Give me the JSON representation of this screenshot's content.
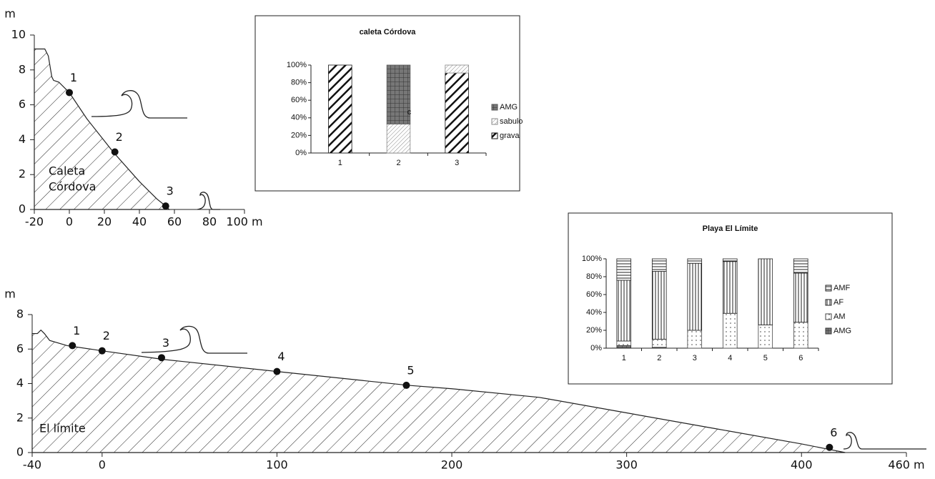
{
  "chart_data": [
    {
      "type": "profile",
      "y_label": "m",
      "area_label": [
        "Caleta",
        "Córdova"
      ],
      "x": [
        -20,
        -14,
        -12,
        -10,
        -9,
        -6,
        0,
        10,
        25,
        40,
        50,
        55,
        57
      ],
      "values": [
        9.2,
        9.2,
        8.8,
        7.6,
        7.4,
        7.3,
        6.7,
        5.2,
        3.3,
        1.6,
        0.6,
        0.2,
        0
      ],
      "stations": {
        "labels": [
          "1",
          "2",
          "3"
        ],
        "x": [
          0,
          26,
          55
        ],
        "values": [
          6.7,
          3.3,
          0.2
        ]
      },
      "xlim": [
        -20,
        100
      ],
      "xticks": [
        -20,
        0,
        20,
        40,
        60,
        80,
        {
          "value": 100,
          "label": "100 m"
        }
      ],
      "ylim": [
        0,
        10
      ],
      "yticks": [
        0,
        2,
        4,
        6,
        8,
        10
      ]
    },
    {
      "type": "stacked_bar",
      "title": "caleta Córdova",
      "categories": [
        "1",
        "2",
        "3"
      ],
      "annotation": "c",
      "series": [
        {
          "name": "AMG",
          "color": "#555555",
          "pattern": "crosshatch",
          "values": [
            0,
            67,
            0
          ]
        },
        {
          "name": "sabulo",
          "color": "#888888",
          "pattern": "diagonal-thin",
          "values": [
            0,
            33,
            9
          ]
        },
        {
          "name": "grava",
          "color": "#111111",
          "pattern": "diagonal-thick",
          "values": [
            100,
            0,
            91
          ]
        }
      ],
      "ylim": [
        0,
        100
      ],
      "yticks": [
        {
          "value": 0,
          "label": "0%"
        },
        {
          "value": 20,
          "label": "20%"
        },
        {
          "value": 40,
          "label": "40%"
        },
        {
          "value": 60,
          "label": "60%"
        },
        {
          "value": 80,
          "label": "80%"
        },
        {
          "value": 100,
          "label": "100%"
        }
      ]
    },
    {
      "type": "profile",
      "y_label": "m",
      "area_label": [
        "El límite"
      ],
      "x": [
        -40,
        -37,
        -35,
        -33,
        -30,
        -20,
        0,
        35,
        100,
        175,
        200,
        250,
        300,
        350,
        400,
        415,
        425
      ],
      "values": [
        6.9,
        6.9,
        7.1,
        6.9,
        6.5,
        6.2,
        5.9,
        5.4,
        4.7,
        3.9,
        3.7,
        3.2,
        2.3,
        1.4,
        0.5,
        0.2,
        0
      ],
      "stations": {
        "labels": [
          "1",
          "2",
          "3",
          "4",
          "5",
          "6"
        ],
        "x": [
          -17,
          0,
          34,
          100,
          174,
          416
        ],
        "values": [
          6.2,
          5.9,
          5.5,
          4.7,
          3.9,
          0.3
        ]
      },
      "xlim": [
        -40,
        460
      ],
      "xticks": [
        -40,
        0,
        100,
        200,
        300,
        400,
        {
          "value": 460,
          "label": "460 m"
        }
      ],
      "ylim": [
        0,
        8
      ],
      "yticks": [
        0,
        2,
        4,
        6,
        8
      ]
    },
    {
      "type": "stacked_bar",
      "title": "Playa El Límite",
      "categories": [
        "1",
        "2",
        "3",
        "4",
        "5",
        "6"
      ],
      "series": [
        {
          "name": "AMF",
          "color": "#222222",
          "pattern": "horizontal",
          "values": [
            24,
            14,
            5,
            3,
            0,
            16
          ]
        },
        {
          "name": "AF",
          "color": "#222222",
          "pattern": "vertical",
          "values": [
            68,
            76,
            75,
            58,
            74,
            55
          ]
        },
        {
          "name": "AM",
          "color": "#444444",
          "pattern": "dots",
          "values": [
            5,
            9,
            20,
            39,
            26,
            29
          ]
        },
        {
          "name": "AMG",
          "color": "#333333",
          "pattern": "crosshatch",
          "values": [
            3,
            1,
            0,
            0,
            0,
            0
          ]
        }
      ],
      "ylim": [
        0,
        100
      ],
      "yticks": [
        {
          "value": 0,
          "label": "0%"
        },
        {
          "value": 20,
          "label": "20%"
        },
        {
          "value": 40,
          "label": "40%"
        },
        {
          "value": 60,
          "label": "60%"
        },
        {
          "value": 80,
          "label": "80%"
        },
        {
          "value": 100,
          "label": "100%"
        }
      ]
    }
  ]
}
